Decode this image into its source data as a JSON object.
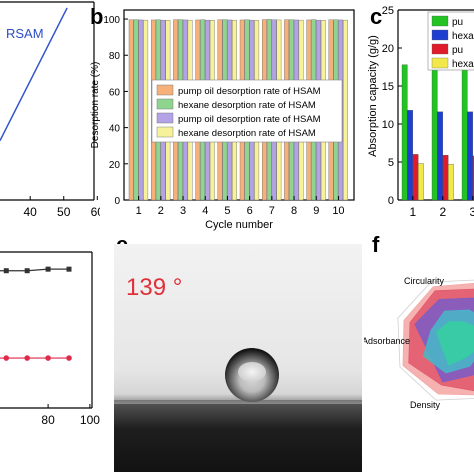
{
  "panels": {
    "a": {
      "label_text": "RSAM",
      "x_ticks": [
        "40",
        "50",
        "60"
      ]
    },
    "b": {
      "label": "b"
    },
    "c": {
      "label": "c"
    },
    "d": {
      "x_ticks": [
        "80",
        "100"
      ]
    },
    "e": {
      "label": "e",
      "angle_text": "139 °"
    },
    "f": {
      "label": "f",
      "axes_labels": [
        "Circularity",
        "Adsorbance",
        "Density"
      ]
    }
  },
  "chart_data": [
    {
      "type": "line",
      "panel": "a",
      "series": [
        {
          "name": "RSAM",
          "x": [
            31,
            51
          ],
          "y": [
            0.3,
            0.97
          ]
        }
      ],
      "x_ticks": [
        "40",
        "50",
        "60"
      ],
      "xlim": [
        31,
        62
      ]
    },
    {
      "type": "bar",
      "panel": "b",
      "ylabel": "Desorption rate (%)",
      "xlabel": "Cycle number",
      "categories": [
        "1",
        "2",
        "3",
        "4",
        "5",
        "6",
        "7",
        "8",
        "9",
        "10"
      ],
      "ylim": [
        0,
        105
      ],
      "y_ticks": [
        "0",
        "20",
        "40",
        "60",
        "80",
        "100"
      ],
      "series": [
        {
          "name": "pump oil desorption rate of HSAM",
          "color": "#f6b07a",
          "values": [
            99.6,
            99.5,
            99.6,
            99.5,
            99.6,
            99.5,
            99.7,
            99.6,
            99.5,
            99.6
          ]
        },
        {
          "name": "hexane desorption rate of HSAM",
          "color": "#8fd48f",
          "values": [
            99.7,
            99.6,
            99.7,
            99.6,
            99.7,
            99.6,
            99.8,
            99.6,
            99.7,
            99.6
          ]
        },
        {
          "name": "pump oil desorption rate of HSAM",
          "color": "#b3a3e6",
          "values": [
            99.5,
            99.4,
            99.5,
            99.4,
            99.5,
            99.4,
            99.6,
            99.5,
            99.4,
            99.5
          ]
        },
        {
          "name": "hexane desorption rate of HSAM",
          "color": "#f7f199",
          "values": [
            99.4,
            99.3,
            99.4,
            99.3,
            99.4,
            99.3,
            99.5,
            99.4,
            99.3,
            99.4
          ]
        }
      ],
      "legend_position": "center"
    },
    {
      "type": "bar",
      "panel": "c",
      "ylabel": "Absorption capacity (g/g)",
      "categories": [
        "1",
        "2",
        "3"
      ],
      "ylim": [
        0,
        25
      ],
      "y_ticks": [
        "0",
        "5",
        "10",
        "15",
        "20",
        "25"
      ],
      "series": [
        {
          "name": "pu",
          "color": "#22c322",
          "values": [
            17.8,
            17.6,
            17.6
          ]
        },
        {
          "name": "hexa",
          "color": "#1f3fd1",
          "values": [
            11.8,
            11.6,
            11.6
          ]
        },
        {
          "name": "pu",
          "color": "#e01b2b",
          "values": [
            6.0,
            5.9,
            5.8
          ]
        },
        {
          "name": "hexa",
          "color": "#f2e84a",
          "values": [
            4.8,
            4.7,
            4.7
          ]
        }
      ],
      "legend_position": "top-right"
    },
    {
      "type": "line",
      "panel": "d",
      "x_ticks": [
        "80",
        "100"
      ],
      "xlim": [
        57,
        101
      ],
      "series": [
        {
          "name": "",
          "color": "#333333",
          "x": [
            50,
            60,
            70,
            80,
            90
          ],
          "y": [
            0.88,
            0.88,
            0.88,
            0.89,
            0.89
          ]
        },
        {
          "name": "",
          "color": "#e02a4a",
          "x": [
            50,
            60,
            70,
            80,
            90
          ],
          "y": [
            0.32,
            0.32,
            0.32,
            0.32,
            0.32
          ]
        }
      ]
    },
    {
      "type": "radar",
      "panel": "f",
      "axes": [
        "Circularity",
        "Adsorbance",
        "Density"
      ]
    }
  ]
}
